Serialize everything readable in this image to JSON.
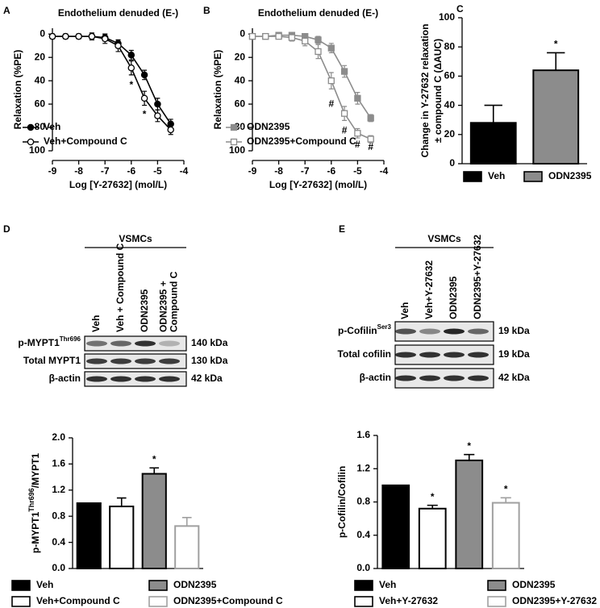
{
  "chart_data": [
    {
      "type": "line",
      "panel": "A",
      "title": "Endothelium denuded (E-)",
      "x_label": "Log [Y-27632] (mol/L)",
      "y_label": "Relaxation (%PE)",
      "x": [
        -9,
        -8.5,
        -8,
        -7.5,
        -7,
        -6.5,
        -6,
        -5.5,
        -5,
        -4.5
      ],
      "xlim": [
        -9,
        -4
      ],
      "xticks": [
        -9,
        -8,
        -7,
        -6,
        -5,
        -4
      ],
      "ylim": [
        100,
        -5
      ],
      "yticks": [
        0,
        20,
        40,
        60,
        80,
        100
      ],
      "series": [
        {
          "name": "Veh",
          "color": "#000000",
          "marker": "circle",
          "filled": true,
          "values": [
            2,
            2,
            2,
            2,
            3,
            8,
            18,
            35,
            60,
            77
          ],
          "errors": [
            2,
            2,
            2,
            2,
            3,
            3,
            4,
            4,
            5,
            4
          ]
        },
        {
          "name": "Veh+Compound C",
          "color": "#000000",
          "marker": "circle",
          "filled": false,
          "values": [
            2,
            2,
            2,
            2,
            4,
            10,
            29,
            55,
            70,
            82
          ],
          "errors": [
            2,
            2,
            2,
            3,
            4,
            5,
            6,
            6,
            5,
            4
          ]
        }
      ],
      "annotations": [
        {
          "text": "*",
          "x": -6,
          "y": 44
        },
        {
          "text": "*",
          "x": -5.5,
          "y": 69
        }
      ]
    },
    {
      "type": "line",
      "panel": "B",
      "title": "Endothelium denuded (E-)",
      "x_label": "Log [Y-27632] (mol/L)",
      "y_label": "Relaxation (%PE)",
      "x": [
        -9,
        -8.5,
        -8,
        -7.5,
        -7,
        -6.5,
        -6,
        -5.5,
        -5,
        -4.5
      ],
      "xlim": [
        -9,
        -4
      ],
      "xticks": [
        -9,
        -8,
        -7,
        -6,
        -5,
        -4
      ],
      "ylim": [
        100,
        -5
      ],
      "yticks": [
        0,
        20,
        40,
        60,
        80,
        100
      ],
      "series": [
        {
          "name": "ODN2395",
          "color": "#8c8c8c",
          "marker": "square",
          "filled": true,
          "values": [
            2,
            2,
            1,
            1,
            2,
            5,
            12,
            32,
            55,
            72
          ],
          "errors": [
            2,
            2,
            2,
            2,
            2,
            3,
            4,
            5,
            5,
            3
          ]
        },
        {
          "name": "ODN2395+Compound C",
          "color": "#8c8c8c",
          "marker": "square",
          "filled": false,
          "values": [
            2,
            2,
            2,
            3,
            6,
            15,
            40,
            68,
            85,
            90
          ],
          "errors": [
            2,
            2,
            2,
            3,
            4,
            6,
            7,
            6,
            4,
            3
          ]
        }
      ],
      "annotations": [
        {
          "text": "#",
          "x": -6,
          "y": 60
        },
        {
          "text": "#",
          "x": -5.5,
          "y": 83
        },
        {
          "text": "#",
          "x": -5,
          "y": 95
        },
        {
          "text": "#",
          "x": -4.5,
          "y": 97
        }
      ]
    },
    {
      "type": "bar",
      "panel": "C",
      "y_label": [
        "Change in Y-27632 relaxation",
        "± compound C (ΔAUC)"
      ],
      "categories": [
        "Veh",
        "ODN2395"
      ],
      "values": [
        28,
        64
      ],
      "errors": [
        12,
        12
      ],
      "colors": [
        "#000000",
        "#8c8c8c"
      ],
      "edge_colors": [
        "#000000",
        "#000000"
      ],
      "ylim": [
        0,
        100
      ],
      "yticks": [
        0,
        20,
        40,
        60,
        80,
        100
      ],
      "annotations": [
        {
          "text": "*",
          "index": 1
        }
      ]
    },
    {
      "type": "bar",
      "panel": "D",
      "y_label": {
        "text": "p-MYPT1",
        "sup": "Thr696",
        "suffix": "/MYPT1"
      },
      "categories": [
        "Veh",
        "Veh+Compound C",
        "ODN2395",
        "ODN2395+Compound C"
      ],
      "values": [
        1.0,
        0.95,
        1.45,
        0.65
      ],
      "errors": [
        0,
        0.13,
        0.09,
        0.13
      ],
      "colors": [
        "#000000",
        "#ffffff",
        "#8c8c8c",
        "#ffffff"
      ],
      "edge_colors": [
        "#000000",
        "#000000",
        "#000000",
        "#a0a0a0"
      ],
      "ylim": [
        0,
        2.0
      ],
      "yticks": [
        {
          "value": 0,
          "label": "0.0"
        },
        0.4,
        0.8,
        1.2,
        1.6,
        {
          "value": 2,
          "label": "2.0"
        }
      ],
      "annotations": [
        {
          "text": "*",
          "index": 2
        }
      ],
      "blot": {
        "header": "VSMCs",
        "lanes": [
          [
            "Veh"
          ],
          [
            "Veh + Compound C"
          ],
          [
            "ODN2395"
          ],
          [
            "ODN2395 +",
            "Compound C"
          ]
        ],
        "rows": [
          {
            "label": "p-MYPT1",
            "sup": "Thr696",
            "size": "140 kDa"
          },
          {
            "label": "Total MYPT1",
            "size": "130 kDa"
          },
          {
            "label": "β-actin",
            "size": "42 kDa"
          }
        ]
      }
    },
    {
      "type": "bar",
      "panel": "E",
      "y_label": "p-Cofilin/Cofilin",
      "categories": [
        "Veh",
        "Veh+Y-27632",
        "ODN2395",
        "ODN2395+Y-27632"
      ],
      "values": [
        1.0,
        0.72,
        1.3,
        0.79
      ],
      "errors": [
        0,
        0.04,
        0.07,
        0.06
      ],
      "colors": [
        "#000000",
        "#ffffff",
        "#8c8c8c",
        "#ffffff"
      ],
      "edge_colors": [
        "#000000",
        "#000000",
        "#000000",
        "#a0a0a0"
      ],
      "ylim": [
        0,
        1.6
      ],
      "yticks": [
        {
          "value": 0,
          "label": "0.0"
        },
        0.4,
        0.8,
        1.2,
        1.6
      ],
      "annotations": [
        {
          "text": "*",
          "index": 1
        },
        {
          "text": "*",
          "index": 2
        },
        {
          "text": "*",
          "index": 3
        }
      ],
      "blot": {
        "header": "VSMCs",
        "lanes": [
          [
            "Veh"
          ],
          [
            "Veh+Y-27632"
          ],
          [
            "ODN2395"
          ],
          [
            "ODN2395+Y-27632"
          ]
        ],
        "rows": [
          {
            "label": "p-Cofilin",
            "sup": "Ser3",
            "size": "19 kDa"
          },
          {
            "label": "Total cofilin",
            "size": "19 kDa"
          },
          {
            "label": "β-actin",
            "size": "42 kDa"
          }
        ]
      }
    }
  ]
}
